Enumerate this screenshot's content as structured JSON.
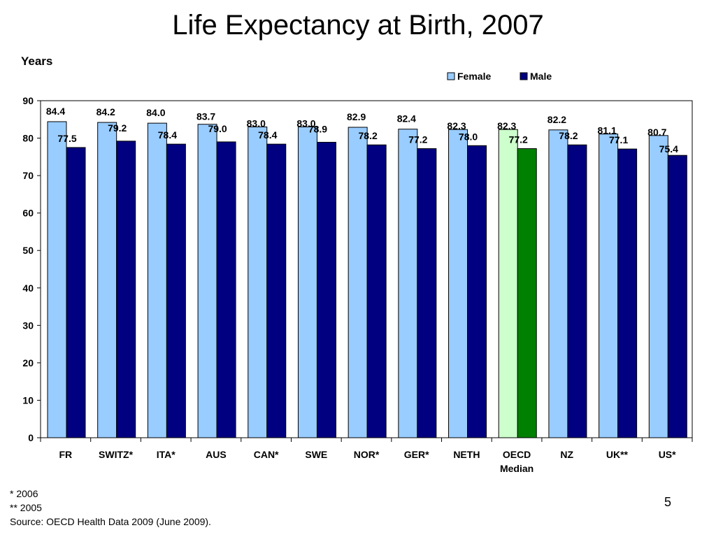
{
  "slide": {
    "title": "Life Expectancy at Birth, 2007",
    "footnotes": [
      "* 2006",
      "** 2005",
      "Source: OECD Health Data 2009 (June 2009)."
    ],
    "page_number": "5"
  },
  "chart_data": {
    "type": "bar",
    "title": "Life Expectancy at Birth, 2007",
    "ylabel": "Years",
    "xlabel": "",
    "ylim": [
      0,
      90
    ],
    "yticks": [
      0,
      10,
      20,
      30,
      40,
      50,
      60,
      70,
      80,
      90
    ],
    "grid": false,
    "legend_position": "top-right",
    "categories": [
      "FR",
      "SWITZ*",
      "ITA*",
      "AUS",
      "CAN*",
      "SWE",
      "NOR*",
      "GER*",
      "NETH",
      "OECD Median",
      "NZ",
      "UK**",
      "US*"
    ],
    "series": [
      {
        "name": "Female",
        "color": "#99CCFF",
        "values": [
          84.4,
          84.2,
          84.0,
          83.7,
          83.0,
          83.0,
          82.9,
          82.4,
          82.3,
          82.3,
          82.2,
          81.1,
          80.7
        ],
        "labels": [
          "84.4",
          "84.2",
          "84.0",
          "83.7",
          "83.0",
          "83.0",
          "82.9",
          "82.4",
          "82.3",
          "82.3",
          "82.2",
          "81.1",
          "80.7"
        ]
      },
      {
        "name": "Male",
        "color": "#000080",
        "values": [
          77.5,
          79.2,
          78.4,
          79.0,
          78.4,
          78.9,
          78.2,
          77.2,
          78.0,
          77.2,
          78.2,
          77.1,
          75.4
        ],
        "labels": [
          "77.5",
          "79.2",
          "78.4",
          "79.0",
          "78.4",
          "78.9",
          "78.2",
          "77.2",
          "78.0",
          "77.2",
          "78.2",
          "77.1",
          "75.4"
        ]
      }
    ],
    "highlight": {
      "category": "OECD Median",
      "female_color": "#CCFFCC",
      "male_color": "#008000"
    }
  }
}
